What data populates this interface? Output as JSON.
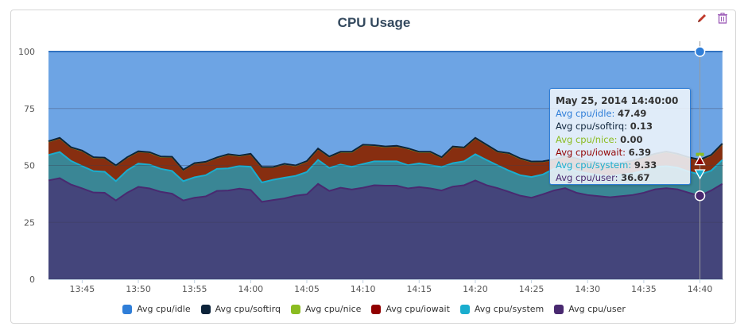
{
  "header": {
    "title": "CPU Usage",
    "edit_icon": "pencil-icon",
    "delete_icon": "trash-icon"
  },
  "chart_data": {
    "type": "area",
    "stacked": true,
    "title": "CPU Usage",
    "xlabel": "",
    "ylabel": "",
    "ylim": [
      0,
      100
    ],
    "yticks": [
      "0",
      "25",
      "50",
      "75",
      "100"
    ],
    "x_start": "13:42",
    "x_step_minutes": 1,
    "xticks": [
      "13:45",
      "13:50",
      "13:55",
      "14:00",
      "14:05",
      "14:10",
      "14:15",
      "14:20",
      "14:25",
      "14:30",
      "14:35",
      "14:40"
    ],
    "grid": true,
    "legend_position": "bottom",
    "series": [
      {
        "name": "Avg cpu/idle",
        "color": "#2f7ed8",
        "remainder_of": 100
      },
      {
        "name": "Avg cpu/softirq",
        "color": "#0d233a",
        "values": [
          0.1,
          0.1,
          0.1,
          0.1,
          0.1,
          0.1,
          0.1,
          0.1,
          0.1,
          0.1,
          0.1,
          0.1,
          0.1,
          0.1,
          0.1,
          0.1,
          0.1,
          0.1,
          0.1,
          0.1,
          0.1,
          0.1,
          0.1,
          0.1,
          0.1,
          0.1,
          0.1,
          0.1,
          0.1,
          0.1,
          0.1,
          0.1,
          0.1,
          0.1,
          0.1,
          0.1,
          0.1,
          0.1,
          0.1,
          0.1,
          0.1,
          0.1,
          0.1,
          0.1,
          0.1,
          0.1,
          0.1,
          0.1,
          0.1,
          0.1,
          0.1,
          0.1,
          0.1,
          0.1,
          0.1,
          0.1,
          0.1,
          0.1,
          0.13,
          0.1,
          0.1
        ]
      },
      {
        "name": "Avg cpu/nice",
        "color": "#8bbc21",
        "values": [
          0,
          0,
          0,
          0,
          0,
          0,
          0,
          0,
          0,
          0,
          0,
          0,
          0,
          0,
          0,
          0,
          0,
          0,
          0,
          0,
          0,
          0,
          0,
          0,
          0,
          0,
          0,
          0,
          0,
          0,
          0,
          0,
          0,
          0,
          0,
          0,
          0,
          0,
          0,
          0,
          0,
          0,
          0,
          0,
          0,
          0,
          0,
          0,
          0,
          0,
          0,
          0,
          0,
          0,
          0,
          0,
          0,
          0,
          0,
          0,
          0
        ]
      },
      {
        "name": "Avg cpu/iowait",
        "color": "#910000",
        "values": [
          5.9,
          6.1,
          5.9,
          6.7,
          6.0,
          6.1,
          6.8,
          5.7,
          5.3,
          5.4,
          5.3,
          6.1,
          4.9,
          6.1,
          5.8,
          4.9,
          6.1,
          4.4,
          5.6,
          6.7,
          5.5,
          6.0,
          4.5,
          4.7,
          4.9,
          4.9,
          5.5,
          6.5,
          8.4,
          7.0,
          6.4,
          6.7,
          7.3,
          5.0,
          5.8,
          4.2,
          7.2,
          6.0,
          7.1,
          6.6,
          6.0,
          7.6,
          7.3,
          6.7,
          5.7,
          4.0,
          4.4,
          5.6,
          5.0,
          5.2,
          5.3,
          5.1,
          5.5,
          5.9,
          5.7,
          6.3,
          6.0,
          6.2,
          6.39,
          6.8,
          7.1
        ]
      },
      {
        "name": "Avg cpu/system",
        "color": "#1aadce",
        "values": [
          11.2,
          11.5,
          10.4,
          9.8,
          9.4,
          9.2,
          8.5,
          9.8,
          10.2,
          10.4,
          10.1,
          10.0,
          8.5,
          9.0,
          9.3,
          9.7,
          9.7,
          10.0,
          10.2,
          8.5,
          8.9,
          9.1,
          8.7,
          9.8,
          10.5,
          10.1,
          10.2,
          10.0,
          10.4,
          10.5,
          10.7,
          10.7,
          10.2,
          10.4,
          10.2,
          10.3,
          10.3,
          10.5,
          11.5,
          11.1,
          10.0,
          9.3,
          9.0,
          9.1,
          8.7,
          9.5,
          9.6,
          9.4,
          9.5,
          9.3,
          9.2,
          9.4,
          9.5,
          9.6,
          9.8,
          9.7,
          9.5,
          9.3,
          9.33,
          8.7,
          10.5
        ]
      },
      {
        "name": "Avg cpu/user",
        "color": "#492970",
        "values": [
          43.4,
          44.4,
          41.6,
          39.9,
          38.1,
          38.0,
          34.6,
          38.0,
          40.6,
          39.9,
          38.4,
          37.6,
          34.6,
          35.8,
          36.4,
          38.8,
          39.0,
          39.8,
          39.2,
          34.0,
          34.8,
          35.5,
          36.7,
          37.3,
          41.9,
          38.8,
          40.2,
          39.4,
          40.2,
          41.3,
          41.1,
          41.1,
          39.9,
          40.5,
          39.9,
          39.0,
          40.7,
          41.3,
          43.4,
          41.3,
          40.0,
          38.4,
          36.7,
          35.8,
          37.3,
          39.0,
          40.0,
          38.0,
          37.0,
          36.5,
          36.0,
          36.5,
          37.0,
          38.0,
          39.5,
          40.0,
          39.5,
          38.0,
          36.67,
          39.0,
          41.9
        ]
      }
    ],
    "tooltip": {
      "header": "May 25, 2014 14:40:00",
      "rows": [
        {
          "label": "Avg cpu/idle:",
          "value": "47.49",
          "color": "#2f7ed8"
        },
        {
          "label": "Avg cpu/softirq:",
          "value": "0.13",
          "color": "#0d233a"
        },
        {
          "label": "Avg cpu/nice:",
          "value": "0.00",
          "color": "#8bbc21"
        },
        {
          "label": "Avg cpu/iowait:",
          "value": "6.39",
          "color": "#910000"
        },
        {
          "label": "Avg cpu/system:",
          "value": "9.33",
          "color": "#1aadce"
        },
        {
          "label": "Avg cpu/user:",
          "value": "36.67",
          "color": "#492970"
        }
      ]
    },
    "hover_time": "14:40"
  }
}
